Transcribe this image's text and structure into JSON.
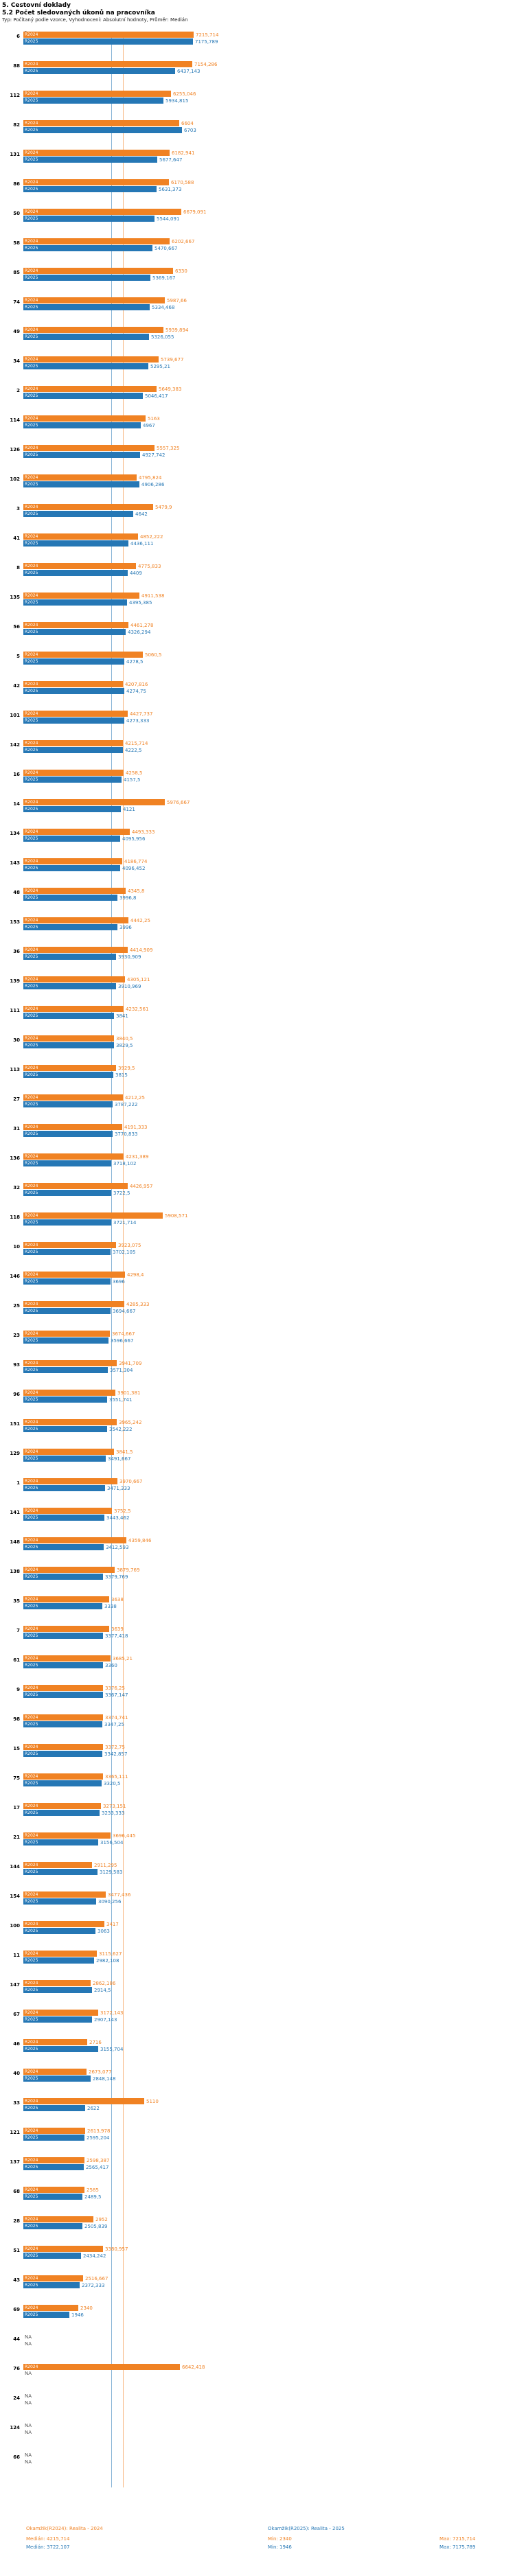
{
  "header": {
    "title1": "5. Cestovní doklady",
    "title2": "5.2 Počet sledovaných úkonů na pracovníka",
    "subtitle": "Typ: Počítaný podle vzorce, Vyhodnocení: Absolutní hodnoty, Průměr: Medián"
  },
  "axis": {
    "zero_label": "0"
  },
  "colors": {
    "r2024": "#f08223",
    "r2025": "#2577b5"
  },
  "chart_data": {
    "type": "bar",
    "orientation": "horizontal",
    "series_names": [
      "R2024",
      "R2025"
    ],
    "na_label": "NA",
    "xlim": [
      0,
      7600
    ],
    "median_lines": {
      "R2024": 4215.714,
      "R2025": 3722.107
    },
    "rows": [
      {
        "id": "6",
        "r2024": "7215,714",
        "r2025": "7175,789"
      },
      {
        "id": "88",
        "r2024": "7154,286",
        "r2025": "6437,143"
      },
      {
        "id": "112",
        "r2024": "6255,046",
        "r2025": "5934,815"
      },
      {
        "id": "82",
        "r2024": "6604",
        "r2025": "6703"
      },
      {
        "id": "131",
        "r2024": "6182,941",
        "r2025": "5677,647"
      },
      {
        "id": "86",
        "r2024": "6170,588",
        "r2025": "5631,373"
      },
      {
        "id": "50",
        "r2024": "6679,091",
        "r2025": "5544,091"
      },
      {
        "id": "58",
        "r2024": "6202,667",
        "r2025": "5470,667"
      },
      {
        "id": "85",
        "r2024": "6330",
        "r2025": "5369,167"
      },
      {
        "id": "74",
        "r2024": "5987,66",
        "r2025": "5334,468"
      },
      {
        "id": "49",
        "r2024": "5939,894",
        "r2025": "5326,055"
      },
      {
        "id": "34",
        "r2024": "5739,677",
        "r2025": "5295,21"
      },
      {
        "id": "2",
        "r2024": "5649,383",
        "r2025": "5046,417"
      },
      {
        "id": "114",
        "r2024": "5163",
        "r2025": "4967"
      },
      {
        "id": "126",
        "r2024": "5557,325",
        "r2025": "4927,742"
      },
      {
        "id": "102",
        "r2024": "4795,824",
        "r2025": "4906,286"
      },
      {
        "id": "3",
        "r2024": "5479,9",
        "r2025": "4642"
      },
      {
        "id": "41",
        "r2024": "4852,222",
        "r2025": "4436,111"
      },
      {
        "id": "8",
        "r2024": "4775,833",
        "r2025": "4409"
      },
      {
        "id": "135",
        "r2024": "4911,538",
        "r2025": "4395,385"
      },
      {
        "id": "56",
        "r2024": "4461,278",
        "r2025": "4326,294"
      },
      {
        "id": "5",
        "r2024": "5060,5",
        "r2025": "4278,5"
      },
      {
        "id": "42",
        "r2024": "4207,816",
        "r2025": "4274,75"
      },
      {
        "id": "101",
        "r2024": "4427,737",
        "r2025": "4273,333"
      },
      {
        "id": "142",
        "r2024": "4215,714",
        "r2025": "4222,5"
      },
      {
        "id": "16",
        "r2024": "4258,5",
        "r2025": "4157,5"
      },
      {
        "id": "14",
        "r2024": "5976,667",
        "r2025": "4121"
      },
      {
        "id": "134",
        "r2024": "4493,333",
        "r2025": "4095,956"
      },
      {
        "id": "143",
        "r2024": "4186,774",
        "r2025": "4096,452"
      },
      {
        "id": "48",
        "r2024": "4345,8",
        "r2025": "3996,8"
      },
      {
        "id": "153",
        "r2024": "4442,25",
        "r2025": "3996"
      },
      {
        "id": "36",
        "r2024": "4414,909",
        "r2025": "3930,909"
      },
      {
        "id": "139",
        "r2024": "4305,121",
        "r2025": "3910,969"
      },
      {
        "id": "111",
        "r2024": "4232,561",
        "r2025": "3841"
      },
      {
        "id": "30",
        "r2024": "3840,5",
        "r2025": "3829,5"
      },
      {
        "id": "113",
        "r2024": "3929,5",
        "r2025": "3815"
      },
      {
        "id": "27",
        "r2024": "4212,25",
        "r2025": "3787,222"
      },
      {
        "id": "31",
        "r2024": "4191,333",
        "r2025": "3770,833"
      },
      {
        "id": "136",
        "r2024": "4231,389",
        "r2025": "3718,102"
      },
      {
        "id": "32",
        "r2024": "4426,957",
        "r2025": "3722,5"
      },
      {
        "id": "118",
        "r2024": "5908,571",
        "r2025": "3721,714"
      },
      {
        "id": "10",
        "r2024": "3923,075",
        "r2025": "3702,105"
      },
      {
        "id": "146",
        "r2024": "4298,4",
        "r2025": "3696"
      },
      {
        "id": "25",
        "r2024": "4285,333",
        "r2025": "3694,667"
      },
      {
        "id": "23",
        "r2024": "3674,667",
        "r2025": "3596,667"
      },
      {
        "id": "93",
        "r2024": "3941,709",
        "r2025": "3571,304"
      },
      {
        "id": "96",
        "r2024": "3901,381",
        "r2025": "3551,741"
      },
      {
        "id": "151",
        "r2024": "3965,242",
        "r2025": "3542,222"
      },
      {
        "id": "129",
        "r2024": "3841,5",
        "r2025": "3491,667"
      },
      {
        "id": "1",
        "r2024": "3970,667",
        "r2025": "3471,333"
      },
      {
        "id": "141",
        "r2024": "3752,5",
        "r2025": "3443,462"
      },
      {
        "id": "148",
        "r2024": "4359,846",
        "r2025": "3412,593"
      },
      {
        "id": "138",
        "r2024": "3879,769",
        "r2025": "3379,769"
      },
      {
        "id": "35",
        "r2024": "3638",
        "r2025": "3338"
      },
      {
        "id": "7",
        "r2024": "3639",
        "r2025": "3377,418"
      },
      {
        "id": "61",
        "r2024": "3685,21",
        "r2025": "3360"
      },
      {
        "id": "9",
        "r2024": "3376,25",
        "r2025": "3367,147"
      },
      {
        "id": "98",
        "r2024": "3374,741",
        "r2025": "3347,25"
      },
      {
        "id": "15",
        "r2024": "3372,75",
        "r2025": "3342,857"
      },
      {
        "id": "75",
        "r2024": "3365,111",
        "r2025": "3320,5"
      },
      {
        "id": "17",
        "r2024": "3273,151",
        "r2025": "3233,333"
      },
      {
        "id": "21",
        "r2024": "3696,445",
        "r2025": "3156,504"
      },
      {
        "id": "144",
        "r2024": "2911,295",
        "r2025": "3129,583"
      },
      {
        "id": "154",
        "r2024": "3477,436",
        "r2025": "3090,256"
      },
      {
        "id": "100",
        "r2024": "3417",
        "r2025": "3063"
      },
      {
        "id": "11",
        "r2024": "3115,627",
        "r2025": "2982,108"
      },
      {
        "id": "147",
        "r2024": "2862,186",
        "r2025": "2914,5"
      },
      {
        "id": "67",
        "r2024": "3172,143",
        "r2025": "2907,143"
      },
      {
        "id": "46",
        "r2024": "2716",
        "r2025": "3155,704"
      },
      {
        "id": "40",
        "r2024": "2673,077",
        "r2025": "2848,148"
      },
      {
        "id": "33",
        "r2024": "5110",
        "r2025": "2622"
      },
      {
        "id": "121",
        "r2024": "2613,978",
        "r2025": "2595,204"
      },
      {
        "id": "137",
        "r2024": "2598,387",
        "r2025": "2565,417"
      },
      {
        "id": "68",
        "r2024": "2585",
        "r2025": "2489,5"
      },
      {
        "id": "28",
        "r2024": "2952",
        "r2025": "2505,839"
      },
      {
        "id": "51",
        "r2024": "3380,957",
        "r2025": "2434,242"
      },
      {
        "id": "43",
        "r2024": "2516,667",
        "r2025": "2372,333"
      },
      {
        "id": "69",
        "r2024": "2340",
        "r2025": "1946"
      },
      {
        "id": "44",
        "r2024": "NA",
        "r2025": "NA"
      },
      {
        "id": "76",
        "r2024": "6642,418",
        "r2025": "NA"
      },
      {
        "id": "24",
        "r2024": "NA",
        "r2025": "NA"
      },
      {
        "id": "124",
        "r2024": "NA",
        "r2025": "NA"
      },
      {
        "id": "66",
        "r2024": "NA",
        "r2025": "NA"
      }
    ]
  },
  "footer": {
    "legend_r2024": "Okamžik(R2024): Realita - 2024",
    "legend_r2025": "Okamžik(R2025): Realita - 2025",
    "stats_r2024": {
      "median": "Medián: 4215,714",
      "min": "Min: 2340",
      "max": "Max: 7215,714"
    },
    "stats_r2025": {
      "median": "Medián: 3722,107",
      "min": "Min: 1946",
      "max": "Max: 7175,789"
    }
  }
}
